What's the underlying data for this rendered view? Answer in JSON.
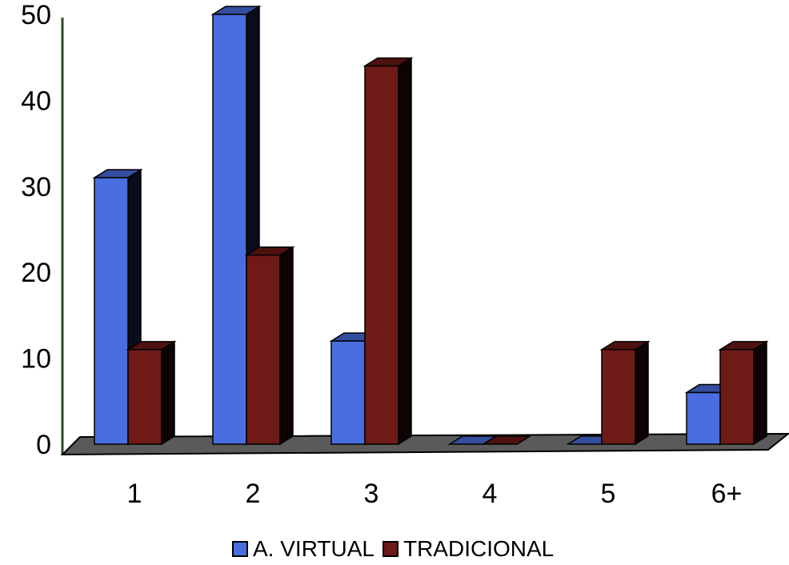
{
  "chart_data": {
    "type": "bar",
    "categories": [
      "1",
      "2",
      "3",
      "4",
      "5",
      "6+"
    ],
    "series": [
      {
        "name": "A. VIRTUAL",
        "values": [
          31,
          50,
          12,
          0,
          0,
          6
        ],
        "color": "#4a6ee0"
      },
      {
        "name": "TRADICIONAL",
        "values": [
          11,
          22,
          44,
          0,
          11,
          11
        ],
        "color": "#6e1a16"
      }
    ],
    "ylim": [
      0,
      50
    ],
    "yticks": [
      "0",
      "10",
      "20",
      "30",
      "40",
      "50"
    ],
    "grid": false,
    "legend_position": "bottom",
    "style": "3d-clustered-bar"
  }
}
